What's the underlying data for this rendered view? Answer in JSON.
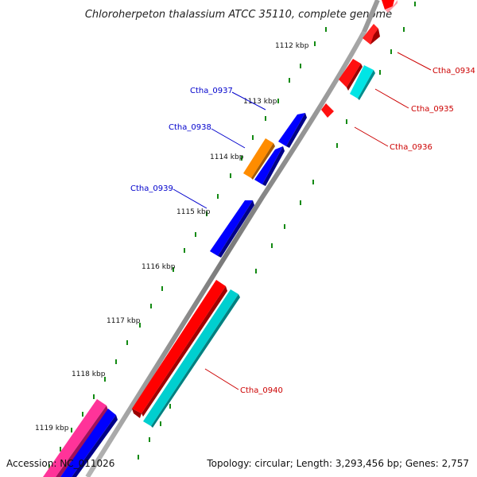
{
  "title": "Chloroherpeton thalassium ATCC 35110, complete genome",
  "footer": {
    "accession": "Accession: NC_011026",
    "summary": "Topology: circular; Length: 3,293,456 bp; Genes: 2,757"
  },
  "ticks": [
    "1112 kbp",
    "1113 kbp",
    "1114 kbp",
    "1115 kbp",
    "1116 kbp",
    "1117 kbp",
    "1118 kbp",
    "1119 kbp"
  ],
  "genes": [
    {
      "id": "Ctha_0934",
      "label": "Ctha_0934",
      "strand": "forward",
      "color": "#ff0000"
    },
    {
      "id": "Ctha_0935",
      "label": "Ctha_0935",
      "strand": "forward",
      "color": "#ff0000"
    },
    {
      "id": "Ctha_0936",
      "label": "Ctha_0936",
      "strand": "forward",
      "color": "#ff0000"
    },
    {
      "id": "Ctha_0937",
      "label": "Ctha_0937",
      "strand": "reverse",
      "color": "#0000ff"
    },
    {
      "id": "Ctha_0938",
      "label": "Ctha_0938",
      "strand": "reverse",
      "color": "#0000ff"
    },
    {
      "id": "Ctha_0939",
      "label": "Ctha_0939",
      "strand": "reverse",
      "color": "#0000ff"
    },
    {
      "id": "Ctha_0940",
      "label": "Ctha_0940",
      "strand": "forward",
      "color": "#ff0000"
    }
  ],
  "colors": {
    "forward_cds": "#ff0000",
    "reverse_cds": "#0000ff",
    "feature_cyan": "#00cccc",
    "feature_orange": "#ff8c00",
    "feature_pink": "#ff1493",
    "backbone": "#888888",
    "ticks": "#008000",
    "forward_label": "#cc0000",
    "reverse_label": "#0000cc"
  }
}
